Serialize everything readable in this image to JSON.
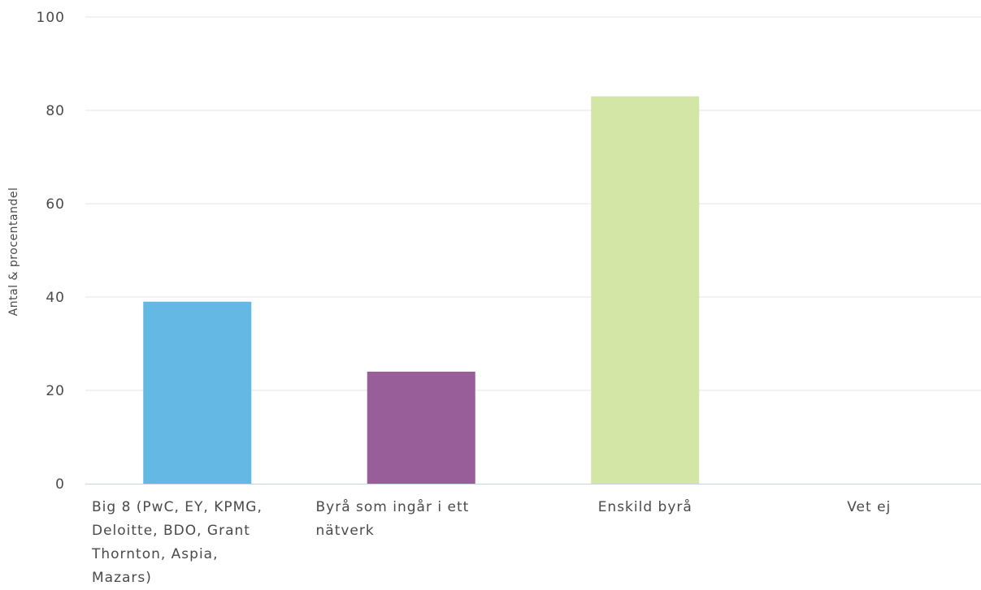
{
  "chart_data": {
    "type": "bar",
    "ylabel": "Antal & procentandel",
    "ylim": [
      0,
      100
    ],
    "yticks": [
      0,
      20,
      40,
      60,
      80,
      100
    ],
    "grid": true,
    "categories": [
      "Big 8 (PwC, EY, KPMG, Deloitte, BDO, Grant Thornton, Aspia, Mazars)",
      "Byrå som ingår i ett nätverk",
      "Enskild byrå",
      "Vet ej"
    ],
    "category_lines": [
      [
        "Big 8 (PwC, EY, KPMG,",
        "Deloitte, BDO, Grant",
        "Thornton, Aspia,",
        "Mazars)"
      ],
      [
        "Byrå som ingår i ett",
        "nätverk"
      ],
      [
        "Enskild byrå"
      ],
      [
        "Vet ej"
      ]
    ],
    "values": [
      39,
      24,
      83,
      0
    ],
    "colors": [
      "#64b9e4",
      "#975e99",
      "#d4e6a5",
      "#cccccc"
    ]
  }
}
